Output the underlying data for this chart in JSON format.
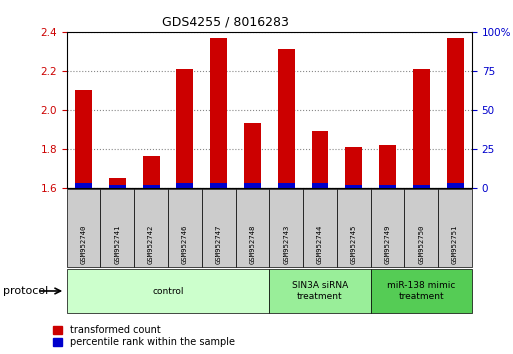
{
  "title": "GDS4255 / 8016283",
  "samples": [
    "GSM952740",
    "GSM952741",
    "GSM952742",
    "GSM952746",
    "GSM952747",
    "GSM952748",
    "GSM952743",
    "GSM952744",
    "GSM952745",
    "GSM952749",
    "GSM952750",
    "GSM952751"
  ],
  "transformed_count": [
    2.1,
    1.65,
    1.76,
    2.21,
    2.37,
    1.93,
    2.31,
    1.89,
    1.81,
    1.82,
    2.21,
    2.37
  ],
  "percentile_rank": [
    3,
    2,
    2,
    3,
    3,
    3,
    3,
    3,
    2,
    2,
    2,
    3
  ],
  "ylim_left": [
    1.6,
    2.4
  ],
  "ylim_right": [
    0,
    100
  ],
  "yticks_left": [
    1.6,
    1.8,
    2.0,
    2.2,
    2.4
  ],
  "yticks_right": [
    0,
    25,
    50,
    75,
    100
  ],
  "bar_color_red": "#cc0000",
  "bar_color_blue": "#0000cc",
  "groups": [
    {
      "label": "control",
      "start": 0,
      "end": 6,
      "color": "#ccffcc"
    },
    {
      "label": "SIN3A siRNA\ntreatment",
      "start": 6,
      "end": 9,
      "color": "#99ee99"
    },
    {
      "label": "miR-138 mimic\ntreatment",
      "start": 9,
      "end": 12,
      "color": "#55cc55"
    }
  ],
  "xlabel_protocol": "protocol",
  "legend_red": "transformed count",
  "legend_blue": "percentile rank within the sample",
  "grid_color": "#888888",
  "background_color": "#ffffff",
  "tick_label_color_left": "#cc0000",
  "tick_label_color_right": "#0000cc",
  "bar_width": 0.5,
  "sample_box_color": "#cccccc"
}
